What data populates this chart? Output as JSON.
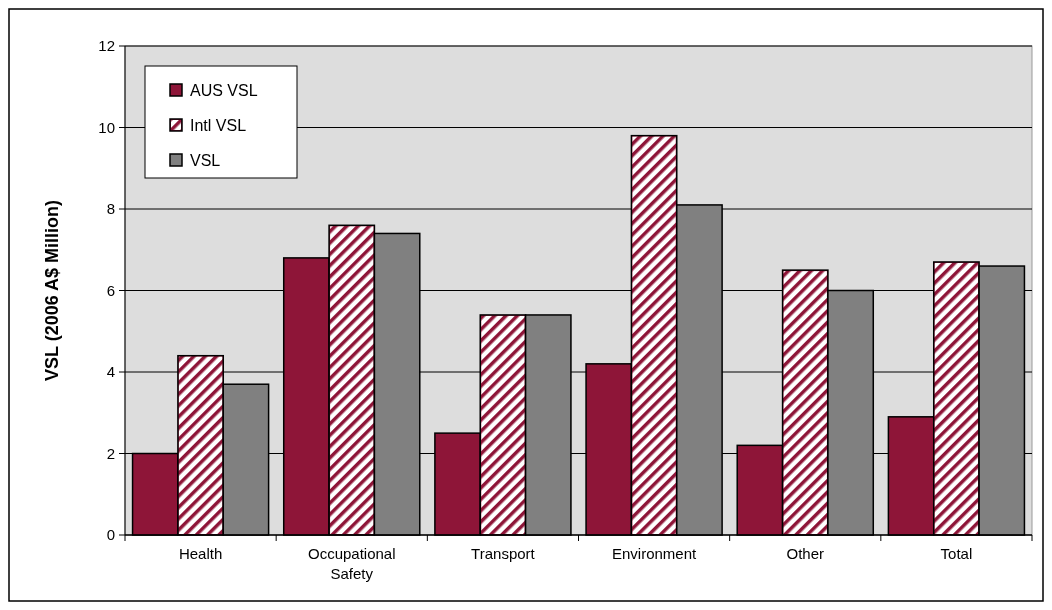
{
  "chart_data": {
    "type": "bar",
    "ylabel": "VSL (2006 A$ Million)",
    "categories": [
      "Health",
      "Occupational Safety",
      "Transport",
      "Environment",
      "Other",
      "Total"
    ],
    "series": [
      {
        "name": "AUS VSL",
        "color": "#8e1538",
        "values": [
          2.0,
          6.8,
          2.5,
          4.2,
          2.2,
          2.9
        ]
      },
      {
        "name": "Intl VSL",
        "color": "#8e1538",
        "values": [
          4.4,
          7.6,
          5.4,
          9.8,
          6.5,
          6.7
        ]
      },
      {
        "name": "VSL",
        "color": "#808080",
        "values": [
          3.7,
          7.4,
          5.4,
          8.1,
          6.0,
          6.6
        ]
      }
    ],
    "ylim": [
      0,
      12
    ],
    "yticks": [
      0,
      2,
      4,
      6,
      8,
      10,
      12
    ],
    "grid": "y",
    "legend": "top left"
  }
}
